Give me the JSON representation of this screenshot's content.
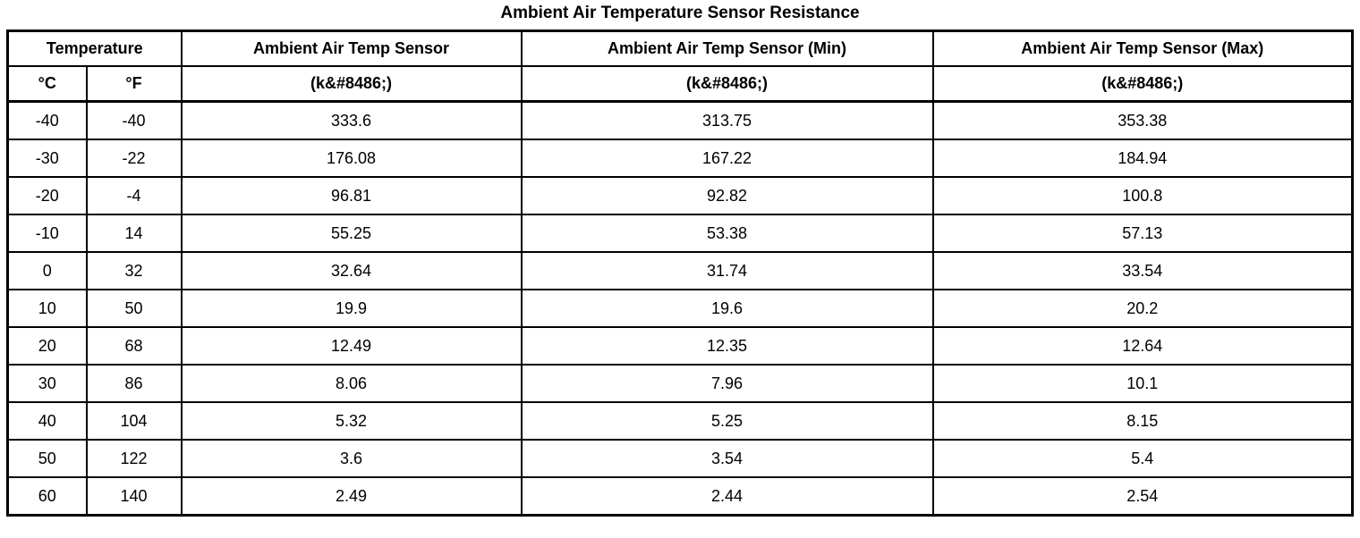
{
  "title": "Ambient Air Temperature Sensor Resistance",
  "table": {
    "header_row1": [
      "Temperature",
      "Ambient Air Temp Sensor",
      "Ambient Air Temp Sensor (Min)",
      "Ambient Air Temp Sensor (Max)"
    ],
    "header_row2": [
      "°C",
      "°F",
      "(k&#8486;)",
      "(k&#8486;)",
      "(k&#8486;)"
    ],
    "rows": [
      [
        "-40",
        "-40",
        "333.6",
        "313.75",
        "353.38"
      ],
      [
        "-30",
        "-22",
        "176.08",
        "167.22",
        "184.94"
      ],
      [
        "-20",
        "-4",
        "96.81",
        "92.82",
        "100.8"
      ],
      [
        "-10",
        "14",
        "55.25",
        "53.38",
        "57.13"
      ],
      [
        "0",
        "32",
        "32.64",
        "31.74",
        "33.54"
      ],
      [
        "10",
        "50",
        "19.9",
        "19.6",
        "20.2"
      ],
      [
        "20",
        "68",
        "12.49",
        "12.35",
        "12.64"
      ],
      [
        "30",
        "86",
        "8.06",
        "7.96",
        "10.1"
      ],
      [
        "40",
        "104",
        "5.32",
        "5.25",
        "8.15"
      ],
      [
        "50",
        "122",
        "3.6",
        "3.54",
        "5.4"
      ],
      [
        "60",
        "140",
        "2.49",
        "2.44",
        "2.54"
      ]
    ]
  },
  "chart_data": {
    "type": "table",
    "title": "Ambient Air Temperature Sensor Resistance",
    "columns": [
      "Temperature °C",
      "Temperature °F",
      "Ambient Air Temp Sensor (k&#8486;)",
      "Ambient Air Temp Sensor (Min) (k&#8486;)",
      "Ambient Air Temp Sensor (Max) (k&#8486;)"
    ],
    "rows": [
      [
        -40,
        -40,
        333.6,
        313.75,
        353.38
      ],
      [
        -30,
        -22,
        176.08,
        167.22,
        184.94
      ],
      [
        -20,
        -4,
        96.81,
        92.82,
        100.8
      ],
      [
        -10,
        14,
        55.25,
        53.38,
        57.13
      ],
      [
        0,
        32,
        32.64,
        31.74,
        33.54
      ],
      [
        10,
        50,
        19.9,
        19.6,
        20.2
      ],
      [
        20,
        68,
        12.49,
        12.35,
        12.64
      ],
      [
        30,
        86,
        8.06,
        7.96,
        10.1
      ],
      [
        40,
        104,
        5.32,
        5.25,
        8.15
      ],
      [
        50,
        122,
        3.6,
        3.54,
        5.4
      ],
      [
        60,
        140,
        2.49,
        2.44,
        2.54
      ]
    ]
  }
}
